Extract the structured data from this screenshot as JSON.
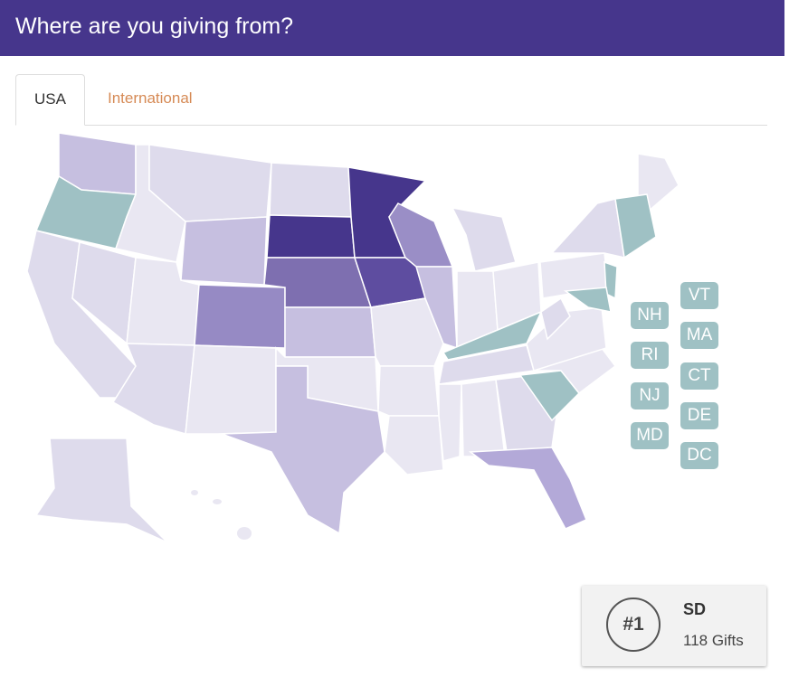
{
  "header": {
    "title": "Where are you giving from?"
  },
  "tabs": [
    "USA",
    "International"
  ],
  "small_states": [
    "VT",
    "NH",
    "MA",
    "RI",
    "CT",
    "NJ",
    "DE",
    "MD",
    "DC"
  ],
  "rank_card": {
    "rank": "#1",
    "state": "SD",
    "gifts": "118 Gifts"
  }
}
